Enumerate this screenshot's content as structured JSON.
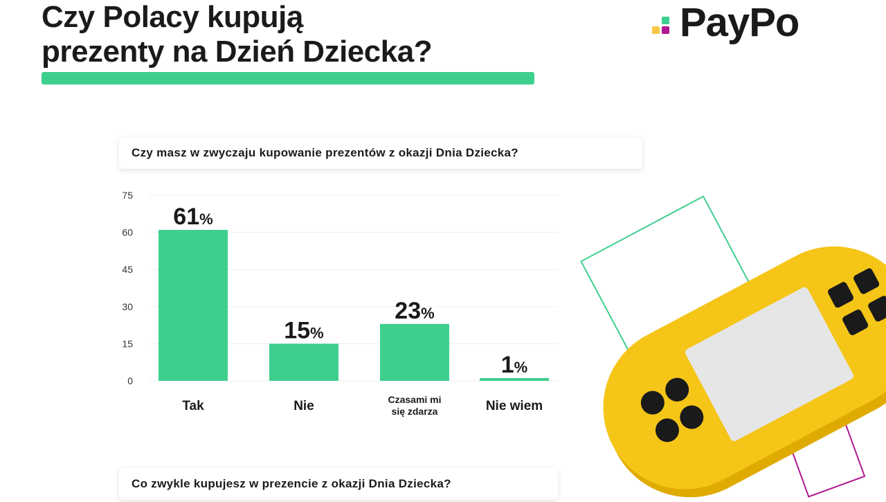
{
  "header": {
    "title_line1": "Czy Polacy kupują",
    "title_line2": "prezenty na Dzień Dziecka?",
    "logo_text": "PayPo"
  },
  "colors": {
    "accent": "#3ecf8e",
    "logo_green": "#3ecf8e",
    "logo_purple": "#b0198f",
    "logo_yellow": "#f6c744",
    "console_yellow": "#f5c518"
  },
  "question1": "Czy masz w zwyczaju kupowanie prezentów z okazji Dnia Dziecka?",
  "question2": "Co zwykle kupujesz w prezencie z okazji Dnia Dziecka?",
  "chart_data": {
    "type": "bar",
    "categories": [
      "Tak",
      "Nie",
      "Czasami mi się zdarza",
      "Nie wiem"
    ],
    "category_lines": [
      [
        "Tak"
      ],
      [
        "Nie"
      ],
      [
        "Czasami mi",
        "się zdarza"
      ],
      [
        "Nie wiem"
      ]
    ],
    "values": [
      61,
      15,
      23,
      1
    ],
    "value_labels": [
      "61",
      "15",
      "23",
      "1"
    ],
    "value_suffix": "%",
    "yticks": [
      "0",
      "15",
      "30",
      "45",
      "60",
      "75"
    ],
    "ylim": [
      0,
      75
    ],
    "grid": true,
    "legend": "none",
    "bar_color": "#3ecf8e"
  },
  "decor": {
    "console_icon": "game-console-icon",
    "outline_square_colors": [
      "#3ecf8e",
      "#b0198f"
    ]
  }
}
